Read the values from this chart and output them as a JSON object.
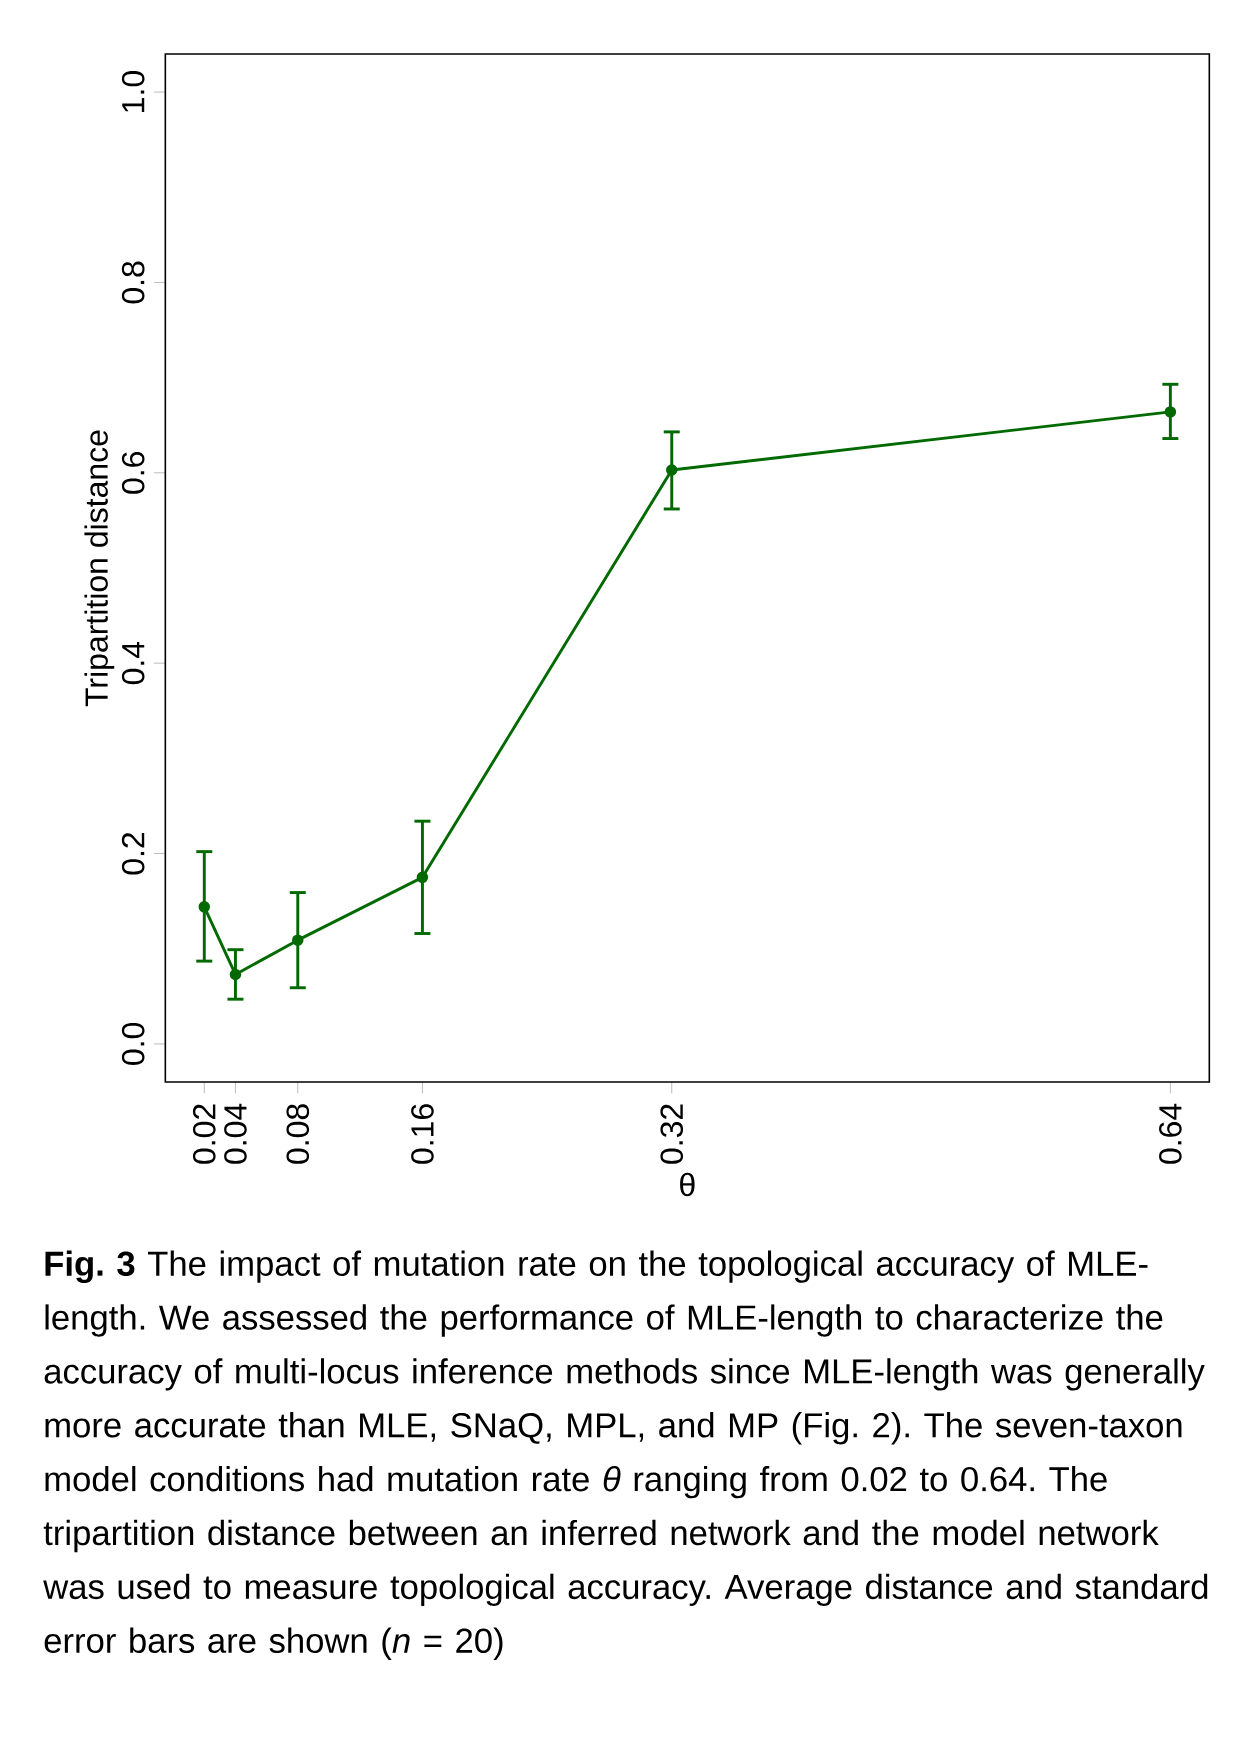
{
  "chart_data": {
    "type": "line",
    "xlabel": "θ",
    "ylabel": "Tripartition distance",
    "x": [
      0.02,
      0.04,
      0.08,
      0.16,
      0.32,
      0.64
    ],
    "series": [
      {
        "color": "#006a00",
        "values": [
          0.144,
          0.073,
          0.109,
          0.175,
          0.603,
          0.664
        ],
        "errors": [
          [
            0.087,
            0.202
          ],
          [
            0.047,
            0.099
          ],
          [
            0.059,
            0.159
          ],
          [
            0.116,
            0.234
          ],
          [
            0.562,
            0.643
          ],
          [
            0.636,
            0.693
          ]
        ]
      }
    ],
    "xlim": [
      -0.005,
      0.665
    ],
    "ylim": [
      -0.04,
      1.04
    ],
    "xticks": [
      0.02,
      0.04,
      0.08,
      0.16,
      0.32,
      0.64
    ],
    "yticks": [
      {
        "value": 0,
        "label": "0.0"
      },
      0.2,
      0.4,
      0.6,
      0.8,
      {
        "value": 1,
        "label": "1.0"
      }
    ],
    "marker": "circle",
    "line_style": "solid",
    "grid": false,
    "annotations": [
      "**Fig. 3** The impact of mutation rate on the topological accuracy of MLE-length. We assessed the performance of MLE-length to characterize the accuracy of multi-locus inference methods since MLE-length was generally more accurate than MLE, SNaQ, MPL, and MP (Fig. 2). The seven-taxon model conditions had mutation rate *θ* ranging from 0.02 to 0.64. The tripartition distance between an inferred network and the model network was used to measure topological accuracy. Average distance and standard error bars are shown (*n* = 20)"
    ]
  }
}
